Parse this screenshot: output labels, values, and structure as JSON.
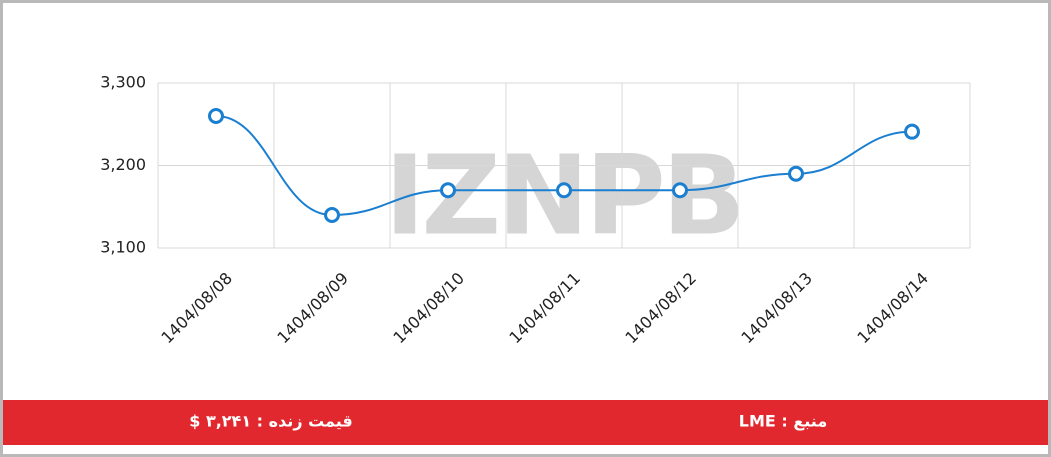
{
  "chart_data": {
    "type": "line",
    "watermark": "IZNPB",
    "categories": [
      "1404/08/08",
      "1404/08/09",
      "1404/08/10",
      "1404/08/11",
      "1404/08/12",
      "1404/08/13",
      "1404/08/14"
    ],
    "series": [
      {
        "color": "#1a7fd0",
        "values": [
          3260,
          3140,
          3170,
          3170,
          3170,
          3190,
          3241
        ]
      }
    ],
    "ylim": [
      3100,
      3300
    ],
    "yticks": [
      {
        "value": 3100,
        "label": "3,100"
      },
      {
        "value": 3200,
        "label": "3,200"
      },
      {
        "value": 3300,
        "label": "3,300"
      }
    ],
    "grid": true
  },
  "footer": {
    "live_price": "قیمت زنده : ۳,۲۴۱ $",
    "source": "منبع : LME"
  }
}
